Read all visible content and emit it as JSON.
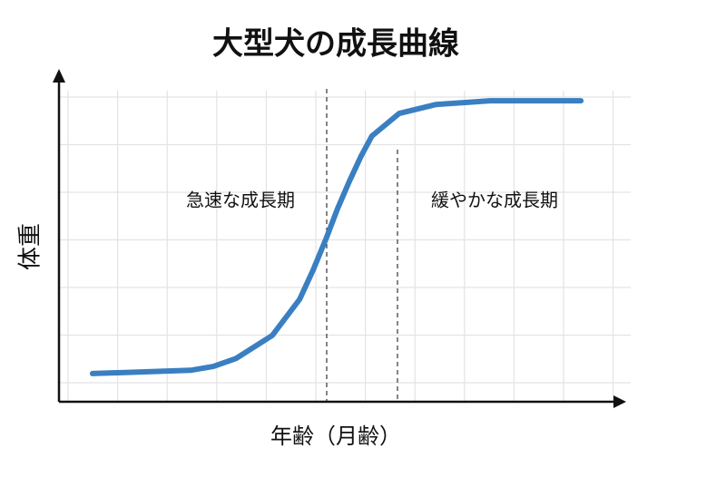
{
  "chart_data": {
    "type": "line",
    "title": "大型犬の成長曲線",
    "x_label": "年齢（月齢）",
    "y_label": "体重",
    "annotations": [
      "急速な成長期",
      "緩やかな成長期"
    ],
    "xlim": [
      0,
      12
    ],
    "ylim": [
      0,
      7
    ],
    "grid": true,
    "series": [
      {
        "color": "#3a7fc1",
        "x": [
          0.71,
          2.79,
          3.27,
          3.75,
          4.52,
          5.1,
          5.38,
          5.67,
          5.9,
          6.15,
          6.4,
          6.63,
          7.21,
          7.98,
          9.13,
          11.06
        ],
        "values": [
          0.6,
          0.67,
          0.75,
          0.92,
          1.41,
          2.18,
          2.79,
          3.49,
          4.1,
          4.68,
          5.22,
          5.65,
          6.13,
          6.32,
          6.4,
          6.4
        ]
      }
    ]
  }
}
